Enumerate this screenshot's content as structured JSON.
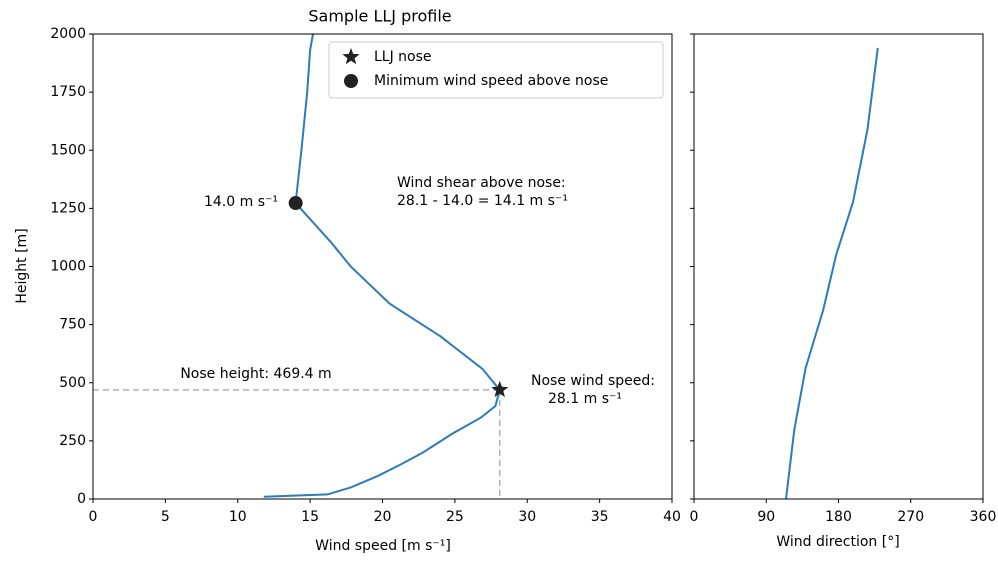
{
  "chart_data": [
    {
      "type": "line",
      "title": "Sample LLJ profile",
      "xlabel": "Wind speed [m s⁻¹]",
      "ylabel": "Height [m]",
      "xlim": [
        0,
        40
      ],
      "xticks": [
        0,
        5,
        10,
        15,
        20,
        25,
        30,
        35,
        40
      ],
      "ylim": [
        0,
        2000
      ],
      "yticks": [
        0,
        250,
        500,
        750,
        1000,
        1250,
        1500,
        1750,
        2000
      ],
      "series": [
        {
          "color": "#2f7ab9",
          "x": [
            11.8,
            16.2,
            17.8,
            19.7,
            21.3,
            22.8,
            24.8,
            26.8,
            27.8,
            28.1,
            26.9,
            24.0,
            20.5,
            17.8,
            16.5,
            14.0,
            14.4,
            14.8,
            15.0,
            15.2
          ],
          "y": [
            10,
            20,
            50,
            100,
            150,
            200,
            280,
            350,
            400,
            469.4,
            560,
            700,
            840,
            1000,
            1100,
            1273,
            1500,
            1750,
            1930,
            2000
          ]
        }
      ],
      "markers": [
        {
          "name": "LLJ nose",
          "marker": "star",
          "color": "#222222",
          "x": 28.1,
          "y": 469.4
        },
        {
          "name": "Minimum wind speed above nose",
          "marker": "circle",
          "color": "#222222",
          "x": 14.0,
          "y": 1273
        }
      ],
      "guide_color": "#b0b0b0",
      "legend": "upper right",
      "annotations": {
        "min_label": "14.0 m s⁻¹",
        "shear": [
          "Wind shear above nose:",
          "28.1 - 14.0 = 14.1 m s⁻¹"
        ],
        "nose_height": "Nose height: 469.4 m",
        "nose_speed": [
          "Nose wind speed:",
          "28.1 m s⁻¹"
        ]
      }
    },
    {
      "type": "line",
      "xlabel": "Wind direction [°]",
      "sharey": true,
      "xlim": [
        0,
        360
      ],
      "xticks": [
        0,
        90,
        180,
        270,
        360
      ],
      "series": [
        {
          "color": "#2f7ab9",
          "x": [
            114.6,
            125,
            139,
            161,
            177,
            198,
            216,
            229
          ],
          "y": [
            0,
            297,
            563,
            813,
            1049,
            1277,
            1587,
            1940
          ]
        }
      ]
    }
  ]
}
